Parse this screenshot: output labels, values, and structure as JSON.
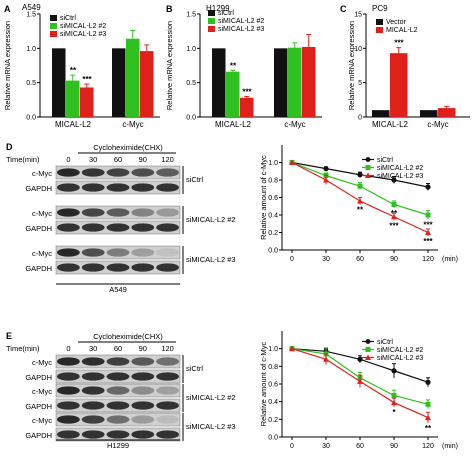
{
  "panels": {
    "A": {
      "letter": "A",
      "cell": "A549",
      "ylabel": "Relative mRNA expression",
      "yticks": [
        "0.0",
        "0.5",
        "1.0",
        "1.5"
      ],
      "ymax": 1.5,
      "legend": [
        "siCtrl",
        "siMICAL-L2 #2",
        "siMICAL-L2 #3"
      ],
      "groups": [
        {
          "label": "MICAL-L2",
          "values": [
            1.0,
            0.53,
            0.43
          ],
          "errors": [
            0.0,
            0.08,
            0.05
          ],
          "stars": [
            "",
            "**",
            "***"
          ]
        },
        {
          "label": "c-Myc",
          "values": [
            1.0,
            1.14,
            0.96
          ],
          "errors": [
            0.0,
            0.12,
            0.09
          ],
          "stars": [
            "",
            "",
            ""
          ]
        }
      ]
    },
    "B": {
      "letter": "B",
      "cell": "H1299",
      "ylabel": "Relative mRNA expression",
      "yticks": [
        "0.0",
        "0.5",
        "1.0",
        "1.5"
      ],
      "ymax": 1.5,
      "legend": [
        "siCtrl",
        "siMICAL-L2 #2",
        "siMICAL-L2 #3"
      ],
      "groups": [
        {
          "label": "MICAL-L2",
          "values": [
            1.0,
            0.66,
            0.28
          ],
          "errors": [
            0.0,
            0.02,
            0.02
          ],
          "stars": [
            "",
            "**",
            "***"
          ]
        },
        {
          "label": "c-Myc",
          "values": [
            1.0,
            1.01,
            1.02
          ],
          "errors": [
            0.0,
            0.07,
            0.18
          ],
          "stars": [
            "",
            "",
            ""
          ]
        }
      ]
    },
    "C": {
      "letter": "C",
      "cell": "PC9",
      "ylabel": "Relative mRNA expression",
      "yticks": [
        "0",
        "5",
        "10",
        "15"
      ],
      "ymax": 15,
      "legend": [
        "Vector",
        "MICAL-L2"
      ],
      "groups": [
        {
          "label": "MICAL-L2",
          "values": [
            1.0,
            9.3
          ],
          "errors": [
            0.0,
            0.8
          ],
          "stars": [
            "",
            "***"
          ]
        },
        {
          "label": "c-Myc",
          "values": [
            1.0,
            1.3
          ],
          "errors": [
            0.0,
            0.25
          ],
          "stars": [
            "",
            ""
          ]
        }
      ]
    },
    "D": {
      "letter": "D",
      "cell": "A549",
      "blot_title": "Cycloheximide(CHX)",
      "time_label": "Time(min)",
      "times": [
        "0",
        "30",
        "60",
        "90",
        "120"
      ],
      "bands": [
        "c-Myc",
        "GAPDH"
      ],
      "groups": [
        "siCtrl",
        "siMICAL-L2 #2",
        "siMICAL-L2 #3"
      ]
    },
    "E": {
      "letter": "E",
      "cell": "H1299",
      "blot_title": "Cycloheximide(CHX)",
      "time_label": "Time(min)",
      "times": [
        "0",
        "30",
        "60",
        "90",
        "120"
      ],
      "bands": [
        "c-Myc",
        "GAPDH"
      ],
      "groups": [
        "siCtrl",
        "siMICAL-L2 #2",
        "siMICAL-L2 #3"
      ]
    }
  },
  "colors": {
    "black": "#111111",
    "green": "#2fc11f",
    "red": "#e0201b",
    "light_green": "#3ccc2a"
  },
  "chart_data": [
    {
      "id": "A",
      "type": "bar",
      "title": "A549",
      "ylabel": "Relative mRNA expression",
      "ylim": [
        0,
        1.5
      ],
      "categories": [
        "MICAL-L2",
        "c-Myc"
      ],
      "series": [
        {
          "name": "siCtrl",
          "values": [
            1.0,
            1.0
          ]
        },
        {
          "name": "siMICAL-L2 #2",
          "values": [
            0.53,
            1.14
          ]
        },
        {
          "name": "siMICAL-L2 #3",
          "values": [
            0.43,
            0.96
          ]
        }
      ]
    },
    {
      "id": "B",
      "type": "bar",
      "title": "H1299",
      "ylabel": "Relative mRNA expression",
      "ylim": [
        0,
        1.5
      ],
      "categories": [
        "MICAL-L2",
        "c-Myc"
      ],
      "series": [
        {
          "name": "siCtrl",
          "values": [
            1.0,
            1.0
          ]
        },
        {
          "name": "siMICAL-L2 #2",
          "values": [
            0.66,
            1.01
          ]
        },
        {
          "name": "siMICAL-L2 #3",
          "values": [
            0.28,
            1.02
          ]
        }
      ]
    },
    {
      "id": "C",
      "type": "bar",
      "title": "PC9",
      "ylabel": "Relative mRNA expression",
      "ylim": [
        0,
        15
      ],
      "categories": [
        "MICAL-L2",
        "c-Myc"
      ],
      "series": [
        {
          "name": "Vector",
          "values": [
            1.0,
            1.0
          ]
        },
        {
          "name": "MICAL-L2",
          "values": [
            9.3,
            1.3
          ]
        }
      ]
    },
    {
      "id": "D",
      "type": "line",
      "ylabel": "Relative amount of c-Myc",
      "xlabel": "(min)",
      "ylim": [
        0,
        1.2
      ],
      "x": [
        0,
        30,
        60,
        90,
        120
      ],
      "xticks": [
        "0",
        "30",
        "60",
        "90",
        "120"
      ],
      "yticks": [
        "0.0",
        "0.2",
        "0.4",
        "0.6",
        "0.8",
        "1.0"
      ],
      "series": [
        {
          "name": "siCtrl",
          "values": [
            1.0,
            0.93,
            0.86,
            0.8,
            0.72
          ],
          "errors": [
            0,
            0.02,
            0.03,
            0.04,
            0.04
          ],
          "stars": [
            "",
            "",
            "",
            "",
            ""
          ]
        },
        {
          "name": "siMICAL-L2 #2",
          "values": [
            1.0,
            0.85,
            0.73,
            0.52,
            0.4
          ],
          "errors": [
            0,
            0.03,
            0.04,
            0.04,
            0.05
          ],
          "stars": [
            "",
            "",
            "",
            "**",
            "***"
          ]
        },
        {
          "name": "siMICAL-L2 #3",
          "values": [
            1.0,
            0.8,
            0.56,
            0.38,
            0.2
          ],
          "errors": [
            0,
            0.05,
            0.04,
            0.04,
            0.04
          ],
          "stars": [
            "",
            "",
            "**",
            "***",
            "***"
          ]
        }
      ]
    },
    {
      "id": "E",
      "type": "line",
      "ylabel": "Relative amount of c-Myc",
      "xlabel": "(min)",
      "ylim": [
        0,
        1.2
      ],
      "x": [
        0,
        30,
        60,
        90,
        120
      ],
      "xticks": [
        "0",
        "30",
        "60",
        "90",
        "120"
      ],
      "yticks": [
        "0.0",
        "0.2",
        "0.4",
        "0.6",
        "0.8",
        "1.0"
      ],
      "series": [
        {
          "name": "siCtrl",
          "values": [
            1.0,
            0.97,
            0.88,
            0.75,
            0.62
          ],
          "errors": [
            0,
            0.03,
            0.04,
            0.08,
            0.05
          ],
          "stars": [
            "",
            "",
            "",
            "",
            ""
          ]
        },
        {
          "name": "siMICAL-L2 #2",
          "values": [
            1.0,
            0.94,
            0.67,
            0.47,
            0.37
          ],
          "errors": [
            0,
            0.07,
            0.06,
            0.06,
            0.05
          ],
          "stars": [
            "",
            "",
            "",
            "",
            ""
          ]
        },
        {
          "name": "siMICAL-L2 #3",
          "values": [
            1.0,
            0.88,
            0.63,
            0.39,
            0.22
          ],
          "errors": [
            0,
            0.06,
            0.07,
            0.05,
            0.06
          ],
          "stars": [
            "",
            "",
            "",
            "*",
            "**"
          ]
        }
      ]
    }
  ]
}
